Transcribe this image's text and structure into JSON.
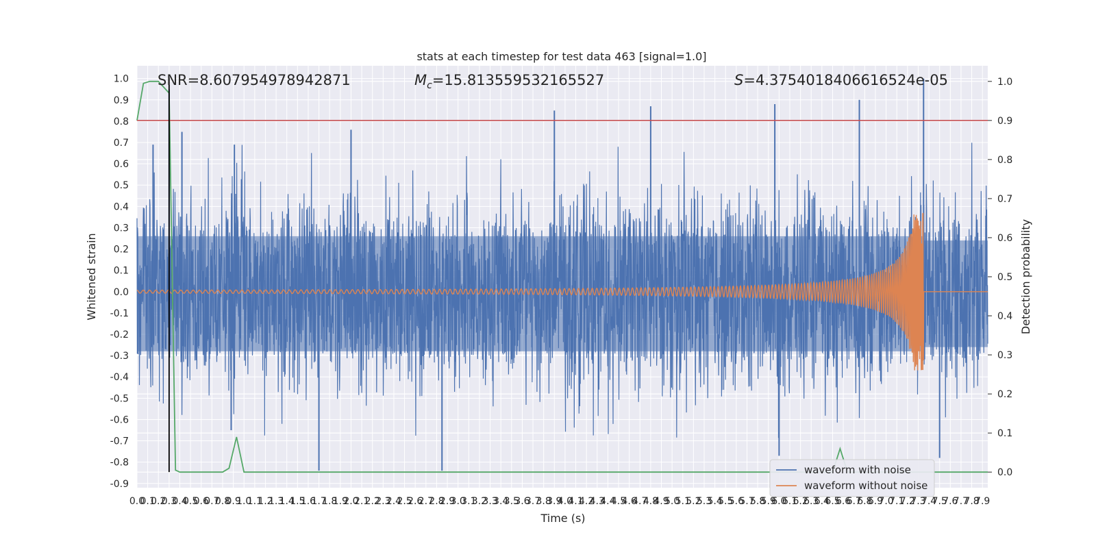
{
  "chart_data": {
    "type": "line",
    "title": "stats at each timestep for test data 463 [signal=1.0]",
    "xlabel": "Time (s)",
    "ylabel": "Whitened strain",
    "y2label": "Detection probability",
    "xlim": [
      0.0,
      7.95
    ],
    "ylim": [
      -0.92,
      1.06
    ],
    "y2lim": [
      -0.04,
      1.04
    ],
    "x_ticks": [
      "0.0",
      "0.1",
      "0.2",
      "0.3",
      "0.4",
      "0.5",
      "0.6",
      "0.7",
      "0.8",
      "0.9",
      "1.0",
      "1.1",
      "1.2",
      "1.3",
      "1.4",
      "1.5",
      "1.6",
      "1.7",
      "1.8",
      "1.9",
      "2.0",
      "2.1",
      "2.2",
      "2.3",
      "2.4",
      "2.5",
      "2.6",
      "2.7",
      "2.8",
      "2.9",
      "3.0",
      "3.1",
      "3.2",
      "3.3",
      "3.4",
      "3.5",
      "3.6",
      "3.7",
      "3.8",
      "3.9",
      "4.0",
      "4.1",
      "4.2",
      "4.3",
      "4.4",
      "4.5",
      "4.6",
      "4.7",
      "4.8",
      "4.9",
      "5.0",
      "5.1",
      "5.2",
      "5.3",
      "5.4",
      "5.5",
      "5.6",
      "5.7",
      "5.8",
      "5.9",
      "6.0",
      "6.1",
      "6.2",
      "6.3",
      "6.4",
      "6.5",
      "6.6",
      "6.7",
      "6.8",
      "6.9",
      "7.0",
      "7.1",
      "7.2",
      "7.3",
      "7.4",
      "7.5",
      "7.6",
      "7.7",
      "7.8",
      "7.9"
    ],
    "y_ticks": [
      "1.0",
      "0.9",
      "0.8",
      "0.7",
      "0.6",
      "0.5",
      "0.4",
      "0.3",
      "0.2",
      "0.1",
      "0.0",
      "-0.1",
      "-0.2",
      "-0.3",
      "-0.4",
      "-0.5",
      "-0.6",
      "-0.7",
      "-0.8",
      "-0.9"
    ],
    "y2_ticks": [
      "1.0",
      "0.9",
      "0.8",
      "0.7",
      "0.6",
      "0.5",
      "0.4",
      "0.3",
      "0.2",
      "0.1",
      "0.0"
    ],
    "annotations": {
      "snr": "SNR=8.607954978942871",
      "mc": "Mc=15.813559532165527",
      "s": "S=4.3754018406616524e-05"
    },
    "legend": {
      "placement": "lower-right",
      "entries": [
        "waveform with noise",
        "waveform without noise"
      ]
    },
    "series": [
      {
        "name": "waveform with noise",
        "color": "#4c72b0",
        "axis": "left",
        "description_range": [
          -0.9,
          1.0
        ],
        "amplitude_envelope": {
          "typical_positive": 0.45,
          "typical_negative": -0.5
        },
        "peaks": [
          {
            "x": 0.3,
            "y": 0.95
          },
          {
            "x": 0.42,
            "y": 0.75
          },
          {
            "x": 0.15,
            "y": 0.69
          },
          {
            "x": 0.91,
            "y": 0.69
          },
          {
            "x": 2.0,
            "y": 0.76
          },
          {
            "x": 3.9,
            "y": 0.85
          },
          {
            "x": 4.8,
            "y": 0.87
          },
          {
            "x": 5.96,
            "y": 0.88
          },
          {
            "x": 6.75,
            "y": 0.9
          },
          {
            "x": 7.35,
            "y": 1.0
          },
          {
            "x": 1.7,
            "y": -0.84
          },
          {
            "x": 2.85,
            "y": -0.84
          },
          {
            "x": 6.0,
            "y": -0.77
          },
          {
            "x": 7.5,
            "y": -0.78
          },
          {
            "x": 0.88,
            "y": -0.65
          }
        ]
      },
      {
        "name": "waveform without noise",
        "color": "#dd8452",
        "axis": "left",
        "chirp": {
          "start_amplitude": 0.01,
          "merger_time": 7.35,
          "peak_positive": 0.37,
          "peak_negative": -0.32
        }
      },
      {
        "name": "",
        "color": "#55a868",
        "axis": "right",
        "points": [
          [
            0.0,
            0.9
          ],
          [
            0.06,
            0.995
          ],
          [
            0.12,
            1.0
          ],
          [
            0.2,
            1.0
          ],
          [
            0.3,
            0.97
          ],
          [
            0.36,
            0.005
          ],
          [
            0.4,
            0.0
          ],
          [
            0.5,
            0.0
          ],
          [
            0.6,
            0.0
          ],
          [
            0.7,
            0.0
          ],
          [
            0.8,
            0.0
          ],
          [
            0.86,
            0.01
          ],
          [
            0.93,
            0.09
          ],
          [
            1.0,
            0.0
          ],
          [
            2.0,
            0.0
          ],
          [
            3.0,
            0.0
          ],
          [
            4.0,
            0.0
          ],
          [
            5.0,
            0.0
          ],
          [
            6.0,
            0.0
          ],
          [
            6.5,
            0.0
          ],
          [
            6.57,
            0.06
          ],
          [
            6.64,
            0.0
          ],
          [
            7.0,
            0.0
          ],
          [
            7.5,
            0.0
          ],
          [
            7.95,
            0.0
          ]
        ]
      },
      {
        "name": "",
        "color": "#c44e52",
        "axis": "right",
        "threshold": 0.9
      },
      {
        "name": "",
        "color": "#000000",
        "axis": "right",
        "vertical_at_x": 0.3
      }
    ]
  }
}
